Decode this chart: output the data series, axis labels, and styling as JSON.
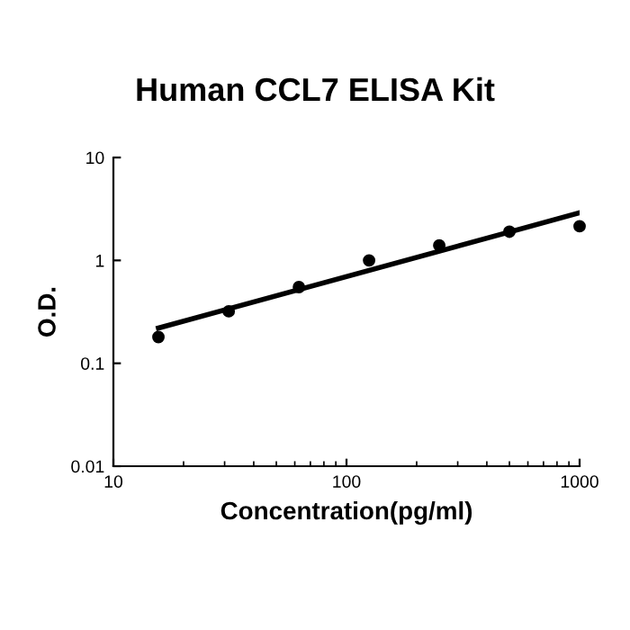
{
  "chart_data": {
    "type": "scatter",
    "title": "Human CCL7 ELISA Kit",
    "xlabel": "Concentration(pg/ml)",
    "ylabel": "O.D.",
    "log": "xy",
    "xlim": [
      10,
      1000
    ],
    "xticks": [
      10,
      100,
      1000
    ],
    "ylim": [
      0.01,
      10
    ],
    "yticks": [
      0.01,
      0.1,
      1,
      10
    ],
    "grid": false,
    "legend": false,
    "series": [
      {
        "color": "#000000",
        "marker": "circle",
        "x": [
          15.6,
          31.25,
          62.5,
          125,
          250,
          500,
          1000
        ],
        "values": [
          0.18,
          0.32,
          0.55,
          1.0,
          1.4,
          1.9,
          2.15
        ]
      },
      {
        "type": "line",
        "color": "#000000",
        "marker": "none",
        "x": [
          15.6,
          1000
        ],
        "values": [
          0.22,
          2.9
        ]
      }
    ]
  }
}
